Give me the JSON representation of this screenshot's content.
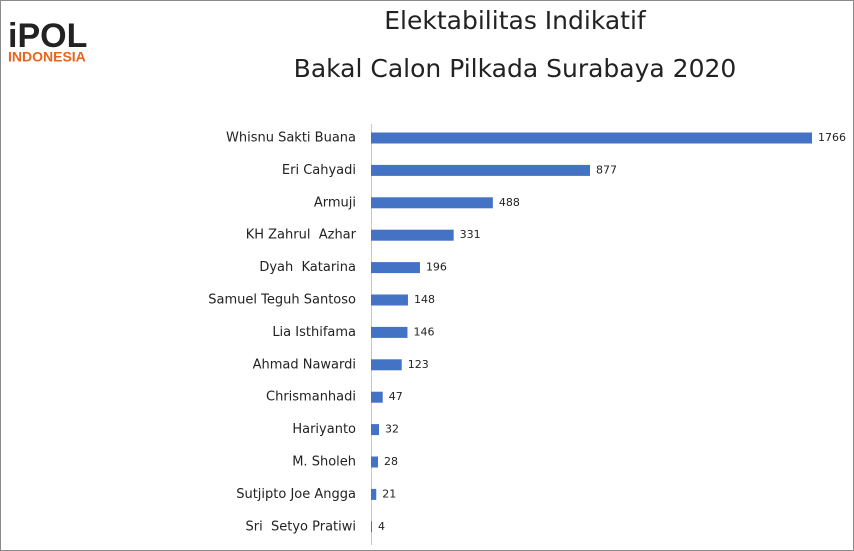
{
  "chart_data": {
    "type": "bar",
    "orientation": "horizontal",
    "logo_text": "iPOL",
    "logo_subtext": "INDONESIA",
    "title": "Elektabilitas Indikatif",
    "subtitle": "Bakal Calon Pilkada Surabaya 2020",
    "categories": [
      "Whisnu Sakti Buana",
      "Eri Cahyadi",
      "Armuji",
      "KH Zahrul  Azhar",
      "Dyah  Katarina",
      "Samuel Teguh Santoso",
      "Lia Isthifama",
      "Ahmad Nawardi",
      "Chrismanhadi",
      "Hariyanto",
      "M. Sholeh",
      "Sutjipto Joe Angga",
      "Sri  Setyo Pratiwi"
    ],
    "values": [
      1766,
      877,
      488,
      331,
      196,
      148,
      146,
      123,
      47,
      32,
      28,
      21,
      4
    ],
    "color": "#4472c4"
  }
}
